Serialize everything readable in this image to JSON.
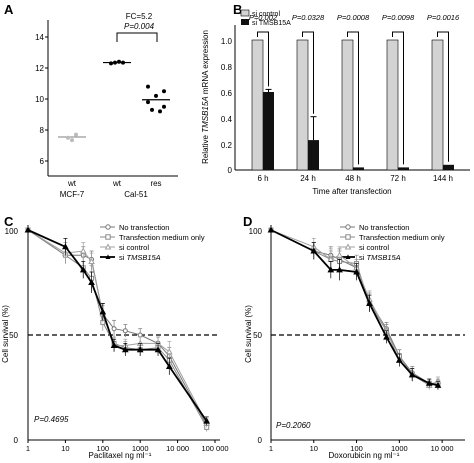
{
  "panels": {
    "A": {
      "letter": "A",
      "annot_fc": "FC=5.2",
      "annot_p": "P=0.004",
      "y_ticks": [
        "6",
        "8",
        "10",
        "12",
        "14"
      ],
      "x_tick_labels": [
        "wt",
        "wt",
        "res"
      ],
      "x_group_labels": [
        "MCF-7",
        "Cal-51"
      ]
    },
    "B": {
      "letter": "B",
      "y_ticks": [
        "0",
        "0.2",
        "0.4",
        "0.6",
        "0.8",
        "1.0"
      ],
      "y_label_pre": "Relative ",
      "y_label_gene": "TMSB15A",
      "y_label_post": " mRNA expression",
      "x_label": "Time after transfection",
      "p_values": [
        "P=0.002",
        "P=0.0328",
        "P=0.0008",
        "P=0.0098",
        "P=0.0016"
      ]
    },
    "C": {
      "letter": "C",
      "y_label": "Cell survival (%)",
      "x_label": "Paclitaxel ng ml⁻¹",
      "p_value": "P=0.4695",
      "x_ticks": [
        "1",
        "10",
        "100",
        "1000",
        "10 000",
        "100 000"
      ],
      "y_ticks": [
        "0",
        "50",
        "100"
      ]
    },
    "D": {
      "letter": "D",
      "y_label": "Cell survival (%)",
      "x_label": "Doxorubicin ng ml⁻¹",
      "p_value": "P=0.2060",
      "x_ticks": [
        "1",
        "10",
        "100",
        "1000",
        "10 000"
      ],
      "y_ticks": [
        "0",
        "50",
        "100"
      ]
    }
  },
  "legend_cd": {
    "no_transfection": "No transfection",
    "medium_only": "Transfection medium only",
    "si_control": "si control",
    "si_prefix": "si ",
    "si_gene": "TMSB15A"
  },
  "legend_b": {
    "si_control": "si control",
    "si_tmsb": "si TMSB15A"
  },
  "colors": {
    "bar_control": "#d3d3d3",
    "bar_si": "#111111",
    "line_no_transfection": "#777777",
    "line_medium": "#8a8a8a",
    "line_si_control": "#a0a0a0",
    "line_si_tmsb": "#000000",
    "mean_mcf7": "#999999"
  },
  "chart_data": [
    {
      "panel": "A",
      "type": "scatter",
      "categories": [
        "wt",
        "wt",
        "res"
      ],
      "groups": [
        "MCF-7",
        "Cal-51",
        "Cal-51"
      ],
      "points": [
        [
          7.5,
          7.35,
          7.7
        ],
        [
          12.3,
          12.35,
          12.4,
          12.35
        ],
        [
          10.8,
          10.5,
          10.2,
          9.8,
          9.5,
          9.3,
          9.2
        ]
      ],
      "means": [
        7.55,
        12.35,
        9.95
      ],
      "ylim": [
        6,
        14.5
      ],
      "annotations": [
        "FC=5.2",
        "P=0.004"
      ]
    },
    {
      "panel": "B",
      "type": "bar",
      "categories": [
        "6 h",
        "24 h",
        "48 h",
        "72 h",
        "144 h"
      ],
      "series": [
        {
          "name": "si control",
          "values": [
            1,
            1,
            1,
            1,
            1
          ]
        },
        {
          "name": "si TMSB15A",
          "values": [
            0.6,
            0.23,
            0.02,
            0.02,
            0.04
          ],
          "errors": [
            0.02,
            0.18,
            0,
            0,
            0
          ]
        }
      ],
      "ylim": [
        0,
        1.1
      ],
      "xlabel": "Time after transfection",
      "ylabel": "Relative TMSB15A mRNA expression",
      "p_values": [
        "P=0.002",
        "P=0.0328",
        "P=0.0008",
        "P=0.0098",
        "P=0.0016"
      ]
    },
    {
      "panel": "C",
      "type": "line",
      "xscale": "log",
      "xlim": [
        1,
        100000
      ],
      "ylim": [
        0,
        100
      ],
      "xlabel": "Paclitaxel ng ml⁻¹",
      "ylabel": "Cell survival (%)",
      "reference_y": 50,
      "x": [
        1,
        10,
        30,
        50,
        100,
        200,
        400,
        1000,
        3000,
        6000,
        60000
      ],
      "series": [
        {
          "name": "No transfection",
          "values": [
            100,
            88,
            88,
            86,
            60,
            53,
            52,
            50,
            46,
            40,
            7
          ],
          "errors": [
            0,
            4,
            4,
            4,
            5,
            4,
            3,
            3,
            3,
            4,
            2
          ]
        },
        {
          "name": "Transfection medium only",
          "values": [
            100,
            88,
            82,
            77,
            56,
            46,
            44,
            43,
            44,
            38,
            6
          ],
          "errors": [
            0,
            4,
            5,
            6,
            4,
            3,
            3,
            3,
            3,
            4,
            2
          ]
        },
        {
          "name": "si control",
          "values": [
            100,
            89,
            90,
            85,
            60,
            45,
            45,
            46,
            46,
            42,
            8
          ],
          "errors": [
            0,
            5,
            4,
            4,
            4,
            3,
            3,
            3,
            3,
            5,
            2
          ]
        },
        {
          "name": "si TMSB15A",
          "values": [
            100,
            92,
            81,
            75,
            61,
            45,
            43,
            43,
            43,
            35,
            9
          ],
          "errors": [
            0,
            4,
            4,
            5,
            4,
            3,
            3,
            3,
            3,
            4,
            2
          ]
        }
      ],
      "annotations": [
        "P=0.4695"
      ]
    },
    {
      "panel": "D",
      "type": "line",
      "xscale": "log",
      "xlim": [
        1,
        20000
      ],
      "ylim": [
        0,
        100
      ],
      "xlabel": "Doxorubicin ng ml⁻¹",
      "ylabel": "Cell survival (%)",
      "reference_y": 50,
      "x": [
        1,
        10,
        25,
        40,
        100,
        200,
        500,
        1000,
        2000,
        5000,
        8000
      ],
      "series": [
        {
          "name": "No transfection",
          "values": [
            100,
            90,
            88,
            86,
            82,
            66,
            53,
            40,
            32,
            27,
            26
          ],
          "errors": [
            0,
            4,
            4,
            5,
            4,
            4,
            3,
            3,
            3,
            2,
            2
          ]
        },
        {
          "name": "Transfection medium only",
          "values": [
            100,
            90,
            86,
            85,
            84,
            65,
            52,
            40,
            31,
            27,
            27
          ],
          "errors": [
            0,
            4,
            4,
            5,
            4,
            4,
            3,
            3,
            3,
            2,
            2
          ]
        },
        {
          "name": "si control",
          "values": [
            100,
            92,
            86,
            88,
            82,
            67,
            52,
            38,
            31,
            26,
            28
          ],
          "errors": [
            0,
            4,
            5,
            4,
            4,
            4,
            3,
            3,
            3,
            2,
            2
          ]
        },
        {
          "name": "si TMSB15A",
          "values": [
            100,
            90,
            81,
            81,
            80,
            65,
            49,
            38,
            31,
            27,
            26
          ],
          "errors": [
            0,
            4,
            4,
            5,
            4,
            4,
            3,
            3,
            3,
            2,
            2
          ]
        }
      ],
      "annotations": [
        "P=0.2060"
      ]
    }
  ]
}
